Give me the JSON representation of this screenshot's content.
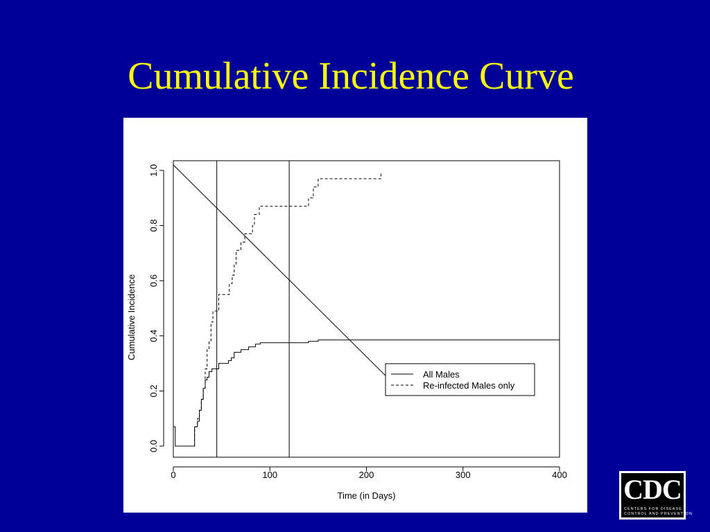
{
  "slide": {
    "title": "Cumulative Incidence Curve"
  },
  "logo": {
    "letters": "CDC",
    "line1": "CENTERS FOR DISEASE",
    "line2": "CONTROL AND PREVENTION"
  },
  "colors": {
    "background": "#000099",
    "title": "#ffff00",
    "panel": "#ffffff",
    "ink": "#000000"
  },
  "chart_data": {
    "type": "line",
    "xlabel": "Time (in Days)",
    "ylabel": "Cumulative Incidence",
    "xlim": [
      0,
      400
    ],
    "ylim": [
      0,
      1.0
    ],
    "xticks": [
      0,
      100,
      200,
      300,
      400
    ],
    "yticks": [
      0.0,
      0.2,
      0.4,
      0.6,
      0.8,
      1.0
    ],
    "xtick_labels": [
      "0",
      "100",
      "200",
      "300",
      "400"
    ],
    "ytick_labels": [
      "0.0",
      "0.2",
      "0.4",
      "0.6",
      "0.8",
      "1.0"
    ],
    "grid": false,
    "legend_position": "bottom-right",
    "vertical_reference_lines": [
      45,
      120
    ],
    "diagonal_reference_line": {
      "from": [
        0,
        1.02
      ],
      "to": [
        230,
        0.22
      ]
    },
    "series": [
      {
        "name": "All Males",
        "style": "solid",
        "step": true,
        "points": [
          [
            0,
            0.07
          ],
          [
            2,
            0.0
          ],
          [
            22,
            0.0
          ],
          [
            22,
            0.07
          ],
          [
            25,
            0.09
          ],
          [
            27,
            0.13
          ],
          [
            29,
            0.17
          ],
          [
            31,
            0.21
          ],
          [
            33,
            0.24
          ],
          [
            35,
            0.25
          ],
          [
            37,
            0.27
          ],
          [
            40,
            0.28
          ],
          [
            47,
            0.3
          ],
          [
            57,
            0.31
          ],
          [
            60,
            0.32
          ],
          [
            63,
            0.34
          ],
          [
            70,
            0.35
          ],
          [
            78,
            0.36
          ],
          [
            85,
            0.37
          ],
          [
            90,
            0.375
          ],
          [
            140,
            0.38
          ],
          [
            150,
            0.385
          ],
          [
            215,
            0.385
          ],
          [
            400,
            0.385
          ]
        ]
      },
      {
        "name": "Re-infected Males only",
        "style": "dashed",
        "step": true,
        "points": [
          [
            22,
            0.0
          ],
          [
            22,
            0.07
          ],
          [
            25,
            0.1
          ],
          [
            27,
            0.13
          ],
          [
            29,
            0.17
          ],
          [
            31,
            0.21
          ],
          [
            33,
            0.28
          ],
          [
            35,
            0.35
          ],
          [
            37,
            0.38
          ],
          [
            39,
            0.45
          ],
          [
            41,
            0.49
          ],
          [
            47,
            0.55
          ],
          [
            58,
            0.59
          ],
          [
            61,
            0.62
          ],
          [
            63,
            0.66
          ],
          [
            65,
            0.71
          ],
          [
            70,
            0.74
          ],
          [
            74,
            0.77
          ],
          [
            82,
            0.8
          ],
          [
            84,
            0.84
          ],
          [
            89,
            0.87
          ],
          [
            140,
            0.9
          ],
          [
            145,
            0.94
          ],
          [
            150,
            0.97
          ],
          [
            215,
            0.99
          ]
        ]
      }
    ]
  }
}
